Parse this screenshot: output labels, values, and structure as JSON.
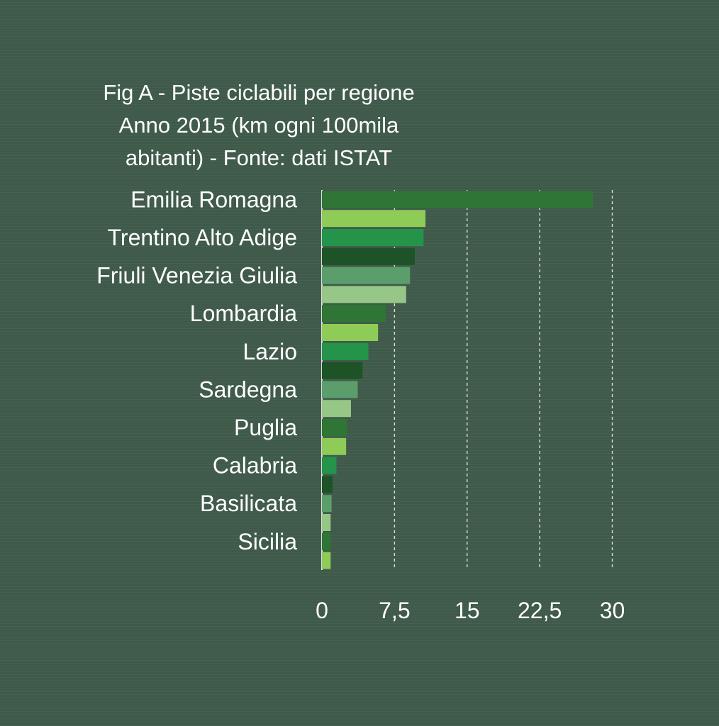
{
  "chart_data": {
    "type": "bar",
    "orientation": "horizontal",
    "title_lines": [
      "Fig A - Piste ciclabili per regione",
      "Anno 2015 (km ogni 100mila",
      "abitanti) - Fonte: dati ISTAT"
    ],
    "categories": [
      "Emilia Romagna",
      "",
      "Trentino Alto Adige",
      "",
      "Friuli Venezia Giulia",
      "",
      "Lombardia",
      "",
      "Lazio",
      "",
      "Sardegna",
      "",
      "Puglia",
      "",
      "Calabria",
      "",
      "Basilicata",
      "",
      "Sicilia",
      ""
    ],
    "values": [
      28,
      10.7,
      10.5,
      9.6,
      9.1,
      8.7,
      6.6,
      5.8,
      4.8,
      4.2,
      3.7,
      3.0,
      2.6,
      2.5,
      1.5,
      1.1,
      1.0,
      0.9,
      0.9,
      0.9
    ],
    "colors": [
      "#2f7535",
      "#8fcb57",
      "#24944a",
      "#1e5327",
      "#5b9e6b",
      "#97c786"
    ],
    "xlim": [
      0,
      30
    ],
    "xticks": [
      "0",
      "7,5",
      "15",
      "22,5",
      "30"
    ],
    "grid": "vertical-dashed",
    "gridline_color": "#d9e0da"
  }
}
